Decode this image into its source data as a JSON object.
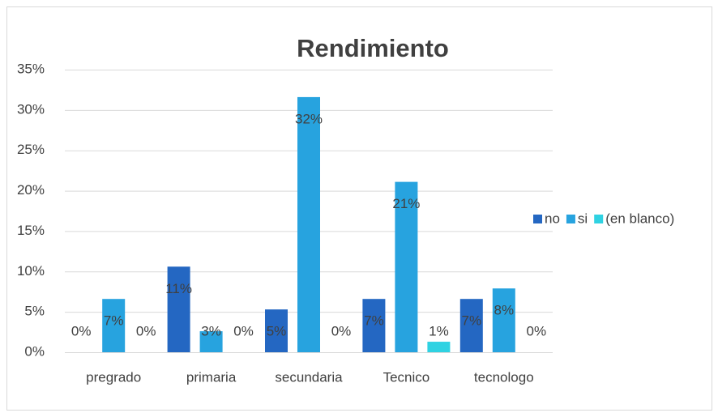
{
  "chart_data": {
    "type": "bar",
    "title": "Rendimiento",
    "categories": [
      "pregrado",
      "primaria",
      "secundaria",
      "Tecnico",
      "tecnologo"
    ],
    "series": [
      {
        "name": "no",
        "color": "#2467c2",
        "values": [
          0,
          10.6,
          5.3,
          6.6,
          6.6
        ],
        "value_labels": [
          "0%",
          "11%",
          "5%",
          "7%",
          "7%"
        ]
      },
      {
        "name": "si",
        "color": "#27a3df",
        "values": [
          6.6,
          2.6,
          31.6,
          21.1,
          7.9
        ],
        "value_labels": [
          "7%",
          "3%",
          "32%",
          "21%",
          "8%"
        ]
      },
      {
        "name": "(en blanco)",
        "color": "#2fd2e2",
        "values": [
          0,
          0,
          0,
          1.3,
          0
        ],
        "value_labels": [
          "0%",
          "0%",
          "0%",
          "1%",
          "0%"
        ]
      }
    ],
    "ylim": [
      0,
      35
    ],
    "yticks": [
      {
        "value": 0,
        "label": "0%"
      },
      {
        "value": 5,
        "label": "5%"
      },
      {
        "value": 10,
        "label": "10%"
      },
      {
        "value": 15,
        "label": "15%"
      },
      {
        "value": 20,
        "label": "20%"
      },
      {
        "value": 25,
        "label": "25%"
      },
      {
        "value": 30,
        "label": "30%"
      },
      {
        "value": 35,
        "label": "35%"
      }
    ],
    "grid": true,
    "legend": "right"
  }
}
